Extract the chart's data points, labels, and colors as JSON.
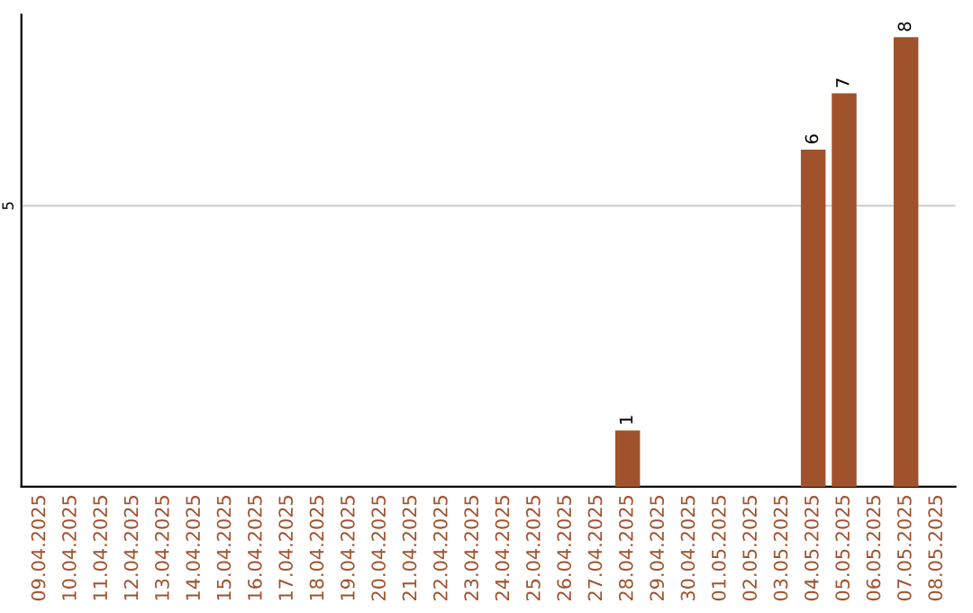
{
  "chart_data": {
    "type": "bar",
    "categories": [
      "09.04.2025",
      "10.04.2025",
      "11.04.2025",
      "12.04.2025",
      "13.04.2025",
      "14.04.2025",
      "15.04.2025",
      "16.04.2025",
      "17.04.2025",
      "18.04.2025",
      "19.04.2025",
      "20.04.2025",
      "21.04.2025",
      "22.04.2025",
      "23.04.2025",
      "24.04.2025",
      "25.04.2025",
      "26.04.2025",
      "27.04.2025",
      "28.04.2025",
      "29.04.2025",
      "30.04.2025",
      "01.05.2025",
      "02.05.2025",
      "03.05.2025",
      "04.05.2025",
      "05.05.2025",
      "06.05.2025",
      "07.05.2025",
      "08.05.2025"
    ],
    "values": [
      null,
      null,
      null,
      null,
      null,
      null,
      null,
      null,
      null,
      null,
      null,
      null,
      null,
      null,
      null,
      null,
      null,
      null,
      null,
      1,
      null,
      null,
      null,
      null,
      null,
      6,
      7,
      null,
      8,
      null
    ],
    "ylim": [
      0,
      8.4
    ],
    "yticks": [
      5
    ],
    "grid": "y",
    "value_labels": [
      null,
      null,
      null,
      null,
      null,
      null,
      null,
      null,
      null,
      null,
      null,
      null,
      null,
      null,
      null,
      null,
      null,
      null,
      null,
      "1",
      null,
      null,
      null,
      null,
      null,
      "6",
      "7",
      null,
      "8",
      null
    ],
    "color": "#a0522d"
  }
}
